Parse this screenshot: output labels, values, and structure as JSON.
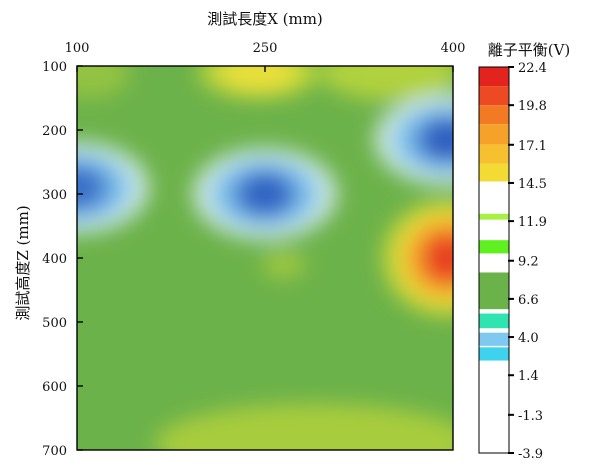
{
  "chart_data": {
    "type": "heatmap",
    "title": "",
    "xlabel": "測試長度X (mm)",
    "ylabel": "測試高度Z (mm)",
    "x_ticks": [
      100,
      250,
      400
    ],
    "y_ticks": [
      100,
      200,
      300,
      400,
      500,
      600,
      700
    ],
    "xlim": [
      100,
      400
    ],
    "ylim": [
      100,
      700
    ],
    "y_axis_inverted": true,
    "x_axis_position": "top",
    "colorbar": {
      "title": "離子平衡(V)",
      "tick_labels": [
        "22.4",
        "19.8",
        "17.1",
        "14.5",
        "11.9",
        "9.2",
        "6.6",
        "4.0",
        "1.4",
        "-1.3",
        "-3.9"
      ],
      "ticks": [
        22.4,
        19.8,
        17.1,
        14.5,
        11.9,
        9.2,
        6.6,
        4.0,
        1.4,
        -1.3,
        -3.9
      ],
      "range": [
        -3.9,
        22.4
      ]
    },
    "background_value": 8,
    "features": [
      {
        "x": 100,
        "z": 290,
        "value": 1.8,
        "label": "low"
      },
      {
        "x": 250,
        "z": 300,
        "value": 1.5,
        "label": "low"
      },
      {
        "x": 395,
        "z": 215,
        "value": 1.4,
        "label": "low"
      },
      {
        "x": 395,
        "z": 400,
        "value": 21.5,
        "label": "high"
      },
      {
        "x": 245,
        "z": 110,
        "value": 14.0,
        "label": "high"
      }
    ]
  }
}
